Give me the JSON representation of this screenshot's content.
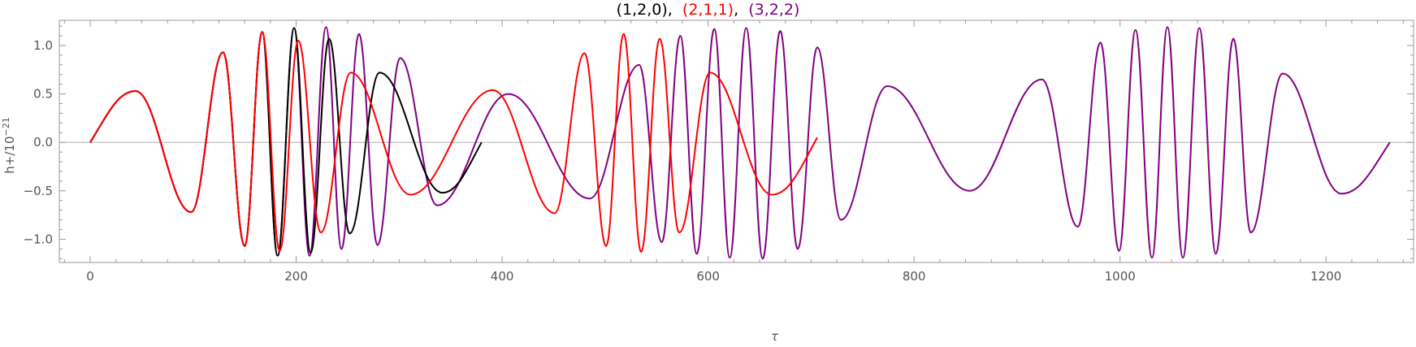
{
  "chart_data": {
    "type": "line",
    "title_parts": [
      {
        "text": "(1,2,0)",
        "color": "#000000"
      },
      {
        "text": ",  ",
        "color": "#000000"
      },
      {
        "text": "(2,1,1)",
        "color": "#ff0000"
      },
      {
        "text": ",  ",
        "color": "#000000"
      },
      {
        "text": "(3,2,2)",
        "color": "#800080"
      }
    ],
    "xlabel": "τ",
    "ylabel_base": "h+/10",
    "ylabel_exp": "−21",
    "xlim": [
      -30,
      1285
    ],
    "ylim": [
      -1.24,
      1.26
    ],
    "x_ticks": [
      0,
      200,
      400,
      600,
      800,
      1000,
      1200
    ],
    "x_tick_labels": [
      "0",
      "200",
      "400",
      "600",
      "800",
      "1000",
      "1200"
    ],
    "y_ticks": [
      -1.0,
      -0.5,
      0.0,
      0.5,
      1.0
    ],
    "y_tick_labels": [
      "−1.0",
      "−0.5",
      "0.0",
      "0.5",
      "1.0"
    ],
    "zero_line": true,
    "series": [
      {
        "name": "(3,2,2)",
        "color": "#800080",
        "points": [
          [
            0,
            0
          ],
          [
            44,
            0.53
          ],
          [
            98,
            -0.72
          ],
          [
            129,
            0.93
          ],
          [
            150,
            -1.07
          ],
          [
            167,
            1.14
          ],
          [
            182,
            -1.17
          ],
          [
            198,
            1.18
          ],
          [
            213,
            -1.17
          ],
          [
            229,
            1.19
          ],
          [
            244,
            -1.1
          ],
          [
            261,
            1.12
          ],
          [
            279,
            -1.06
          ],
          [
            301,
            0.87
          ],
          [
            337,
            -0.65
          ],
          [
            406,
            0.5
          ],
          [
            485,
            -0.58
          ],
          [
            533,
            0.8
          ],
          [
            555,
            -1.03
          ],
          [
            573,
            1.1
          ],
          [
            589,
            -1.15
          ],
          [
            606,
            1.17
          ],
          [
            621,
            -1.19
          ],
          [
            637,
            1.18
          ],
          [
            653,
            -1.2
          ],
          [
            670,
            1.15
          ],
          [
            687,
            -1.1
          ],
          [
            706,
            0.98
          ],
          [
            729,
            -0.8
          ],
          [
            774,
            0.58
          ],
          [
            854,
            -0.5
          ],
          [
            924,
            0.65
          ],
          [
            959,
            -0.87
          ],
          [
            981,
            1.03
          ],
          [
            999,
            -1.12
          ],
          [
            1015,
            1.16
          ],
          [
            1031,
            -1.19
          ],
          [
            1046,
            1.19
          ],
          [
            1061,
            -1.19
          ],
          [
            1077,
            1.18
          ],
          [
            1093,
            -1.15
          ],
          [
            1110,
            1.07
          ],
          [
            1127,
            -0.93
          ],
          [
            1158,
            0.71
          ],
          [
            1215,
            -0.53
          ],
          [
            1262,
            0
          ]
        ]
      },
      {
        "name": "(1,2,0)",
        "color": "#000000",
        "points": [
          [
            0,
            0
          ],
          [
            44,
            0.53
          ],
          [
            98,
            -0.72
          ],
          [
            129,
            0.93
          ],
          [
            150,
            -1.07
          ],
          [
            167,
            1.14
          ],
          [
            182,
            -1.17
          ],
          [
            198,
            1.18
          ],
          [
            214,
            -1.14
          ],
          [
            232,
            1.07
          ],
          [
            252,
            -0.94
          ],
          [
            281,
            0.72
          ],
          [
            342,
            -0.52
          ],
          [
            380,
            0
          ]
        ]
      },
      {
        "name": "(2,1,1)",
        "color": "#ff0000",
        "points": [
          [
            0,
            0
          ],
          [
            44,
            0.53
          ],
          [
            98,
            -0.72
          ],
          [
            129,
            0.93
          ],
          [
            150,
            -1.07
          ],
          [
            167,
            1.14
          ],
          [
            184,
            -1.12
          ],
          [
            202,
            1.05
          ],
          [
            224,
            -0.93
          ],
          [
            253,
            0.72
          ],
          [
            311,
            -0.54
          ],
          [
            391,
            0.54
          ],
          [
            451,
            -0.73
          ],
          [
            480,
            0.92
          ],
          [
            501,
            -1.07
          ],
          [
            518,
            1.12
          ],
          [
            535,
            -1.13
          ],
          [
            553,
            1.07
          ],
          [
            572,
            -0.93
          ],
          [
            602,
            0.72
          ],
          [
            662,
            -0.54
          ],
          [
            706,
            0.05
          ]
        ]
      }
    ]
  }
}
